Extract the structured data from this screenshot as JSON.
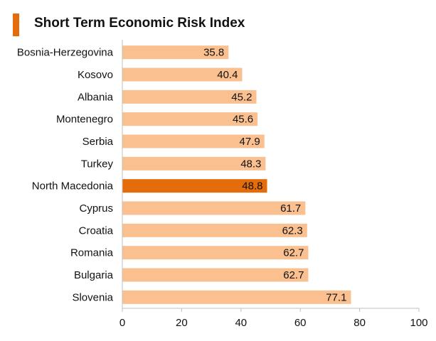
{
  "title": "Short Term Economic Risk Index",
  "colors": {
    "bar": "#fac090",
    "highlight": "#e46c0a",
    "title_accent": "#e46c0a",
    "axis": "#bfbfbf"
  },
  "chart_data": {
    "type": "bar",
    "orientation": "horizontal",
    "title": "Short Term Economic Risk Index",
    "categories": [
      "Bosnia-Herzegovina",
      "Kosovo",
      "Albania",
      "Montenegro",
      "Serbia",
      "Turkey",
      "North Macedonia",
      "Cyprus",
      "Croatia",
      "Romania",
      "Bulgaria",
      "Slovenia"
    ],
    "values": [
      35.8,
      40.4,
      45.2,
      45.6,
      47.9,
      48.3,
      48.8,
      61.7,
      62.3,
      62.7,
      62.7,
      77.1
    ],
    "highlight": "North Macedonia",
    "xlim": [
      0,
      100
    ],
    "xticks": [
      0,
      20,
      40,
      60,
      80,
      100
    ],
    "xlabel": "",
    "ylabel": "",
    "grid": false,
    "legend": "none"
  }
}
